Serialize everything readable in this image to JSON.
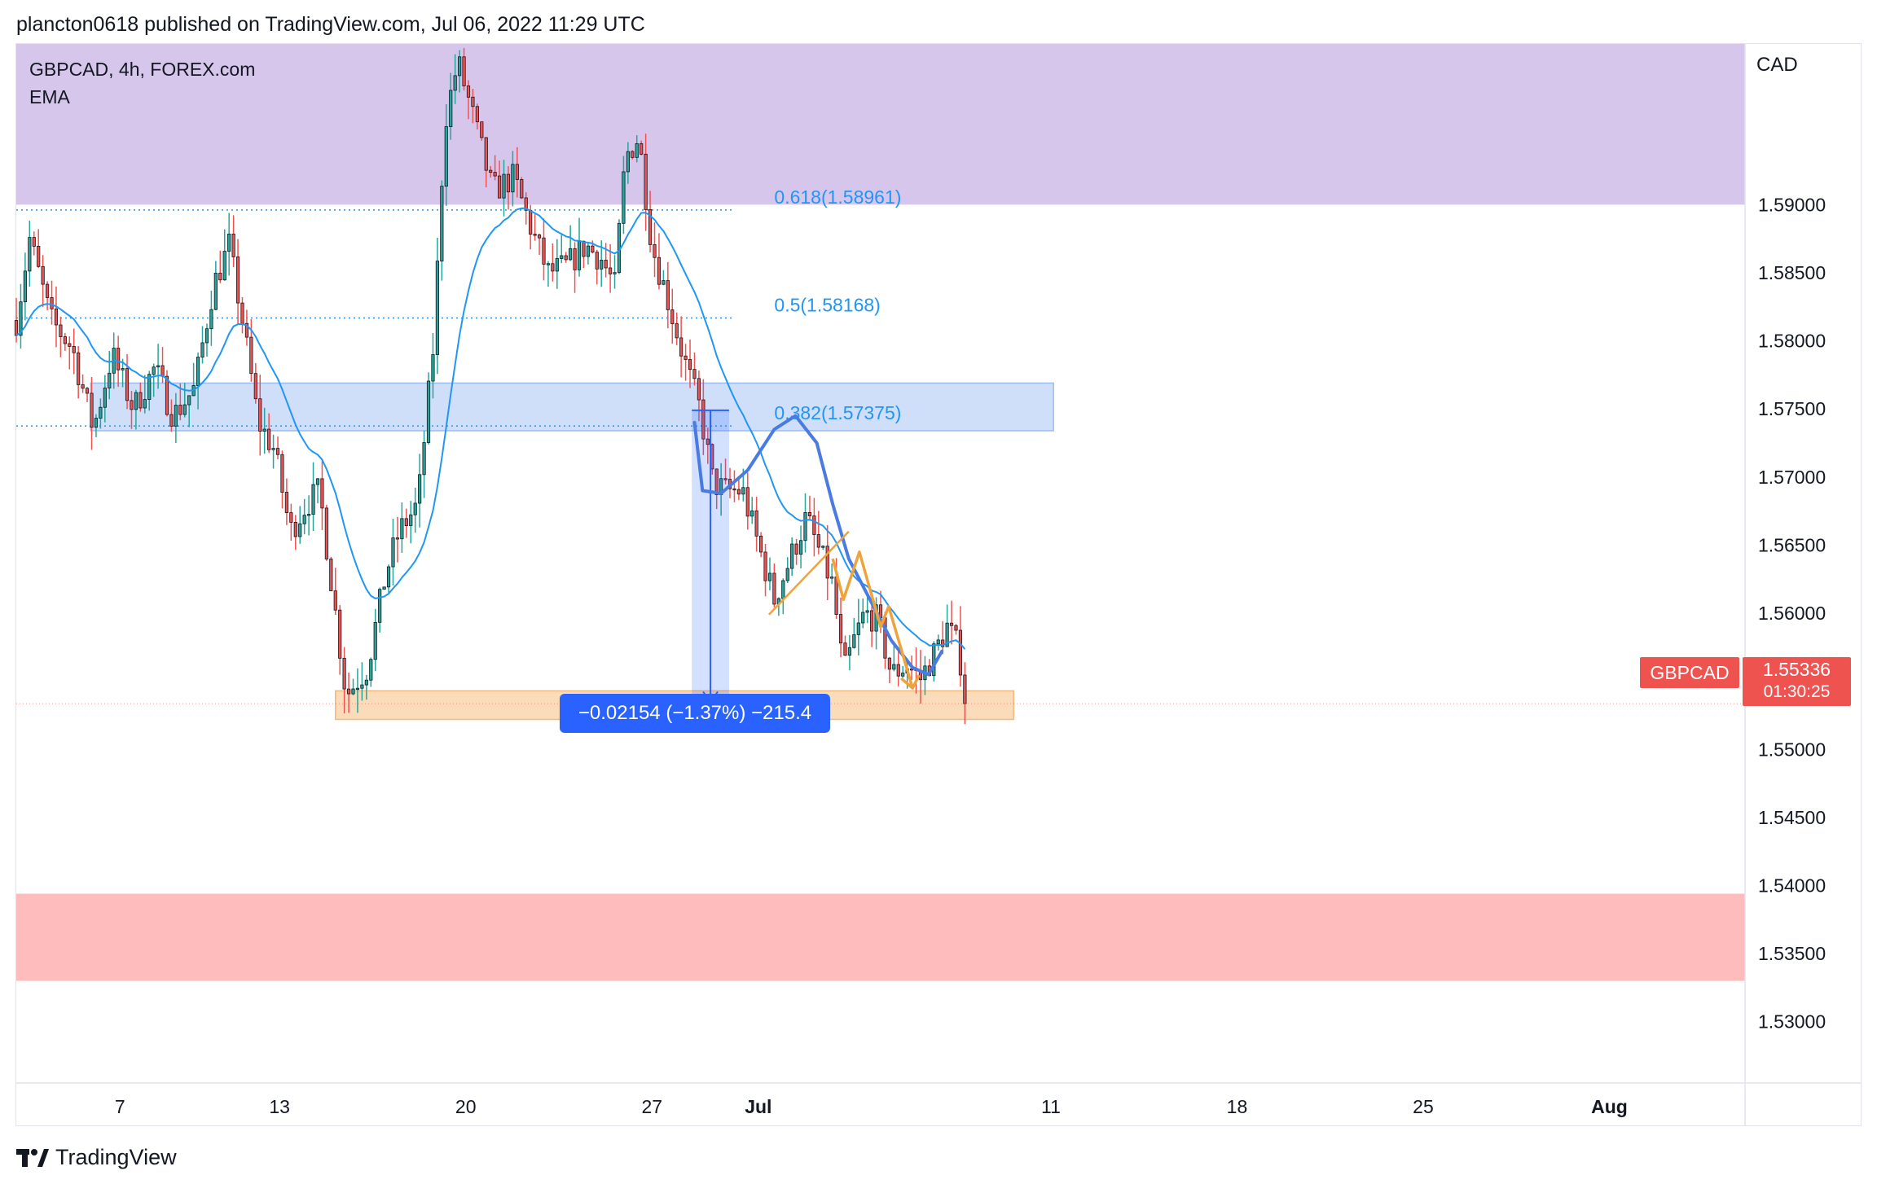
{
  "header": {
    "publisher": "plancton0618 published on TradingView.com, Jul 06, 2022 11:29 UTC"
  },
  "legend": {
    "symbol_line": "GBPCAD, 4h, FOREX.com",
    "indicator": "EMA"
  },
  "axis": {
    "currency": "CAD"
  },
  "price_tag": {
    "symbol": "GBPCAD",
    "price": "1.55336",
    "countdown": "01:30:25"
  },
  "measure": {
    "label": "−0.02154 (−1.37%) −215.4"
  },
  "footer": {
    "brand": "TradingView"
  },
  "colors": {
    "up": "#26a69a",
    "down": "#ef5350",
    "ema": "#2196f3",
    "fib": "#2196f3",
    "supply_zone": "#d7c6ec",
    "demand_zone": "#ffbcbc",
    "blue_zone": "#cfdffa",
    "orange_zone": "#fbdcba",
    "measure": "#2962ff",
    "path_blue": "#4a7be0",
    "path_orange": "#f0a33a"
  },
  "chart_data": {
    "type": "candlestick",
    "symbol": "GBPCAD",
    "timeframe": "4h",
    "ylim": [
      1.5255,
      1.6018
    ],
    "y_ticks": [
      "1.59000",
      "1.58500",
      "1.58000",
      "1.57500",
      "1.57000",
      "1.56500",
      "1.56000",
      "1.55500",
      "1.55000",
      "1.54500",
      "1.54000",
      "1.53500",
      "1.53000"
    ],
    "x_ticks": [
      "7",
      "13",
      "20",
      "27",
      "Jul",
      "11",
      "18",
      "25",
      "Aug"
    ],
    "x_tick_days": [
      7,
      13,
      20,
      27,
      31,
      42,
      49,
      56,
      63
    ],
    "x_range_days": [
      3.1,
      68.1
    ],
    "ohlc_anchors": [
      [
        3.1,
        1.5815
      ],
      [
        3.6,
        1.5875
      ],
      [
        4.4,
        1.5815
      ],
      [
        5.2,
        1.5795
      ],
      [
        6.0,
        1.5735
      ],
      [
        6.7,
        1.579
      ],
      [
        7.5,
        1.575
      ],
      [
        8.3,
        1.578
      ],
      [
        9.0,
        1.5745
      ],
      [
        9.8,
        1.5765
      ],
      [
        10.5,
        1.584
      ],
      [
        11.1,
        1.587
      ],
      [
        11.6,
        1.5815
      ],
      [
        12.2,
        1.574
      ],
      [
        12.8,
        1.572
      ],
      [
        13.4,
        1.566
      ],
      [
        14.0,
        1.568
      ],
      [
        14.5,
        1.569
      ],
      [
        15.1,
        1.56
      ],
      [
        15.5,
        1.554
      ],
      [
        16.3,
        1.556
      ],
      [
        17.0,
        1.563
      ],
      [
        17.5,
        1.566
      ],
      [
        18.2,
        1.568
      ],
      [
        18.8,
        1.58
      ],
      [
        19.2,
        1.596
      ],
      [
        19.7,
        1.6005
      ],
      [
        20.2,
        1.597
      ],
      [
        21.0,
        1.591
      ],
      [
        21.8,
        1.592
      ],
      [
        22.5,
        1.588
      ],
      [
        23.1,
        1.585
      ],
      [
        23.8,
        1.5855
      ],
      [
        24.5,
        1.587
      ],
      [
        25.1,
        1.586
      ],
      [
        25.6,
        1.584
      ],
      [
        26.0,
        1.5935
      ],
      [
        26.5,
        1.595
      ],
      [
        27.0,
        1.587
      ],
      [
        27.6,
        1.583
      ],
      [
        28.3,
        1.578
      ],
      [
        28.8,
        1.575
      ],
      [
        29.3,
        1.5695
      ],
      [
        29.8,
        1.569
      ],
      [
        30.4,
        1.569
      ],
      [
        31.0,
        1.565
      ],
      [
        31.6,
        1.561
      ],
      [
        32.2,
        1.564
      ],
      [
        32.8,
        1.567
      ],
      [
        33.3,
        1.5645
      ],
      [
        33.8,
        1.562
      ],
      [
        34.2,
        1.5555
      ],
      [
        34.6,
        1.558
      ],
      [
        35.0,
        1.56
      ],
      [
        35.5,
        1.5595
      ],
      [
        36.0,
        1.5555
      ],
      [
        36.6,
        1.5562
      ],
      [
        37.1,
        1.5552
      ],
      [
        37.6,
        1.557
      ],
      [
        38.1,
        1.559
      ],
      [
        38.5,
        1.5575
      ],
      [
        38.9,
        1.5534
      ]
    ],
    "ema_period": 20,
    "fib_levels": [
      {
        "label": "0.618(1.58961)",
        "value": 1.58961
      },
      {
        "label": "0.5(1.58168)",
        "value": 1.58168
      },
      {
        "label": "0.382(1.57375)",
        "value": 1.57375
      }
    ],
    "zones": [
      {
        "name": "supply-zone",
        "from_day": 3.1,
        "to_day": 68.1,
        "low": 1.59,
        "high": 1.6018
      },
      {
        "name": "demand-zone",
        "from_day": 3.1,
        "to_day": 68.1,
        "low": 1.533,
        "high": 1.5394
      },
      {
        "name": "resistance-zone",
        "from_day": 5.9,
        "to_day": 42.1,
        "low": 1.5734,
        "high": 1.5769
      },
      {
        "name": "support-zone",
        "from_day": 15.1,
        "to_day": 40.6,
        "low": 1.5522,
        "high": 1.5543
      }
    ],
    "measure": {
      "from_day": 28.5,
      "to_day": 29.9,
      "high": 1.5749,
      "low": 1.5534
    },
    "last_price": 1.55336
  }
}
